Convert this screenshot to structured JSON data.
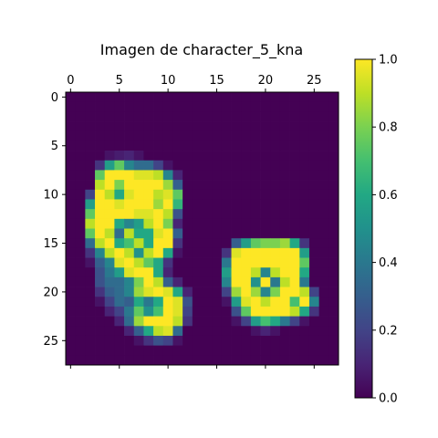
{
  "chart_data": {
    "type": "heatmap",
    "title": "Imagen de character_5_kna",
    "x_ticks": [
      0,
      5,
      10,
      15,
      20,
      25
    ],
    "y_ticks": [
      0,
      5,
      10,
      15,
      20,
      25
    ],
    "xlim": [
      -0.5,
      27.5
    ],
    "ylim": [
      27.5,
      -0.5
    ],
    "x_axis_position": "top",
    "colormap": "viridis",
    "colorbar": {
      "range": [
        0,
        1
      ],
      "ticks": [
        "0.0",
        "0.2",
        "0.4",
        "0.6",
        "0.8",
        "1.0"
      ]
    },
    "grid": false,
    "rows": 28,
    "cols": 28,
    "matrix": [
      [
        0,
        0,
        0,
        0,
        0,
        0,
        0,
        0,
        0,
        0,
        0,
        0,
        0,
        0,
        0,
        0,
        0,
        0,
        0,
        0,
        0,
        0,
        0,
        0,
        0,
        0,
        0,
        0
      ],
      [
        0,
        0,
        0,
        0,
        0,
        0,
        0,
        0,
        0,
        0,
        0,
        0,
        0,
        0,
        0,
        0,
        0,
        0,
        0,
        0,
        0,
        0,
        0,
        0,
        0,
        0,
        0,
        0
      ],
      [
        0,
        0,
        0,
        0,
        0,
        0,
        0,
        0,
        0,
        0,
        0,
        0,
        0,
        0,
        0,
        0,
        0,
        0,
        0,
        0,
        0,
        0,
        0,
        0,
        0,
        0,
        0,
        0
      ],
      [
        0,
        0,
        0,
        0,
        0,
        0,
        0,
        0,
        0,
        0,
        0,
        0,
        0,
        0,
        0,
        0,
        0,
        0,
        0,
        0,
        0,
        0,
        0,
        0,
        0,
        0,
        0,
        0
      ],
      [
        0,
        0,
        0,
        0,
        0,
        0,
        0,
        0,
        0,
        0,
        0,
        0,
        0,
        0,
        0,
        0,
        0,
        0,
        0,
        0,
        0,
        0,
        0,
        0,
        0,
        0,
        0,
        0
      ],
      [
        0,
        0,
        0,
        0,
        0,
        0,
        0,
        0,
        0,
        0,
        0,
        0,
        0,
        0,
        0,
        0,
        0,
        0,
        0,
        0,
        0,
        0,
        0,
        0,
        0,
        0,
        0,
        0
      ],
      [
        0,
        0,
        0,
        0,
        0.05,
        0.08,
        0.1,
        0.05,
        0,
        0,
        0,
        0,
        0,
        0,
        0,
        0,
        0,
        0,
        0,
        0,
        0,
        0,
        0,
        0,
        0,
        0,
        0,
        0
      ],
      [
        0,
        0,
        0,
        0.15,
        0.55,
        0.75,
        0.45,
        0.35,
        0.35,
        0.2,
        0.05,
        0,
        0,
        0,
        0,
        0,
        0,
        0,
        0,
        0,
        0,
        0,
        0,
        0,
        0,
        0,
        0,
        0
      ],
      [
        0,
        0,
        0,
        0.75,
        1,
        1,
        1,
        0.95,
        0.95,
        0.9,
        0.45,
        0.1,
        0,
        0,
        0,
        0,
        0,
        0,
        0,
        0,
        0,
        0,
        0,
        0,
        0,
        0,
        0,
        0
      ],
      [
        0,
        0,
        0,
        0.9,
        1,
        0.8,
        1,
        1,
        1,
        1,
        0.85,
        0.3,
        0,
        0,
        0,
        0,
        0,
        0,
        0,
        0,
        0,
        0,
        0,
        0,
        0,
        0,
        0,
        0
      ],
      [
        0,
        0,
        0.2,
        1,
        0.9,
        0.6,
        0.95,
        1,
        1,
        0.9,
        0.95,
        0.75,
        0,
        0,
        0,
        0,
        0,
        0,
        0,
        0,
        0,
        0,
        0,
        0,
        0,
        0,
        0,
        0
      ],
      [
        0,
        0,
        0.55,
        1,
        1,
        0.95,
        1,
        1,
        1,
        0.85,
        1,
        0.65,
        0,
        0,
        0,
        0,
        0,
        0,
        0,
        0,
        0,
        0,
        0,
        0,
        0,
        0,
        0,
        0
      ],
      [
        0,
        0,
        0.75,
        1,
        1,
        1,
        1,
        0.95,
        0.95,
        1,
        0.9,
        0.25,
        0,
        0,
        0,
        0,
        0,
        0,
        0,
        0,
        0,
        0,
        0,
        0,
        0,
        0,
        0,
        0
      ],
      [
        0,
        0,
        0.9,
        1,
        1,
        0.6,
        0.45,
        0.55,
        0.9,
        1,
        0.8,
        0.1,
        0,
        0,
        0,
        0,
        0,
        0,
        0,
        0,
        0,
        0,
        0,
        0,
        0,
        0,
        0,
        0
      ],
      [
        0,
        0,
        0.75,
        1,
        0.9,
        0.35,
        0.9,
        0.6,
        0.6,
        0.95,
        1,
        0.3,
        0,
        0,
        0,
        0,
        0,
        0,
        0,
        0,
        0,
        0,
        0,
        0,
        0,
        0,
        0,
        0
      ],
      [
        0,
        0,
        0.35,
        0.9,
        1,
        0.6,
        0.7,
        0.9,
        0.6,
        1,
        1,
        0.15,
        0,
        0,
        0,
        0,
        0,
        0.3,
        0.55,
        0.75,
        0.8,
        0.8,
        0.85,
        0.6,
        0.15,
        0,
        0,
        0
      ],
      [
        0,
        0,
        0.15,
        0.45,
        0.9,
        1,
        0.9,
        0.5,
        0.9,
        1,
        0.6,
        0.05,
        0,
        0,
        0,
        0,
        0.15,
        0.95,
        1,
        1,
        1,
        1,
        1,
        1,
        0.55,
        0,
        0,
        0
      ],
      [
        0,
        0,
        0.05,
        0.3,
        0.45,
        0.95,
        1,
        0.9,
        0.75,
        0.6,
        0.15,
        0,
        0,
        0,
        0,
        0,
        0.4,
        1,
        1,
        1,
        1,
        1,
        1,
        1,
        0.75,
        0,
        0,
        0
      ],
      [
        0,
        0,
        0,
        0.25,
        0.4,
        0.55,
        0.95,
        1,
        1,
        0.6,
        0.1,
        0,
        0,
        0,
        0,
        0,
        0.55,
        1,
        1,
        0.9,
        0.45,
        0.9,
        1,
        1,
        0.6,
        0,
        0,
        0
      ],
      [
        0,
        0,
        0,
        0.25,
        0.35,
        0.35,
        0.45,
        0.8,
        1,
        0.9,
        0.3,
        0.1,
        0,
        0,
        0,
        0,
        0.45,
        1,
        1,
        0.5,
        1,
        0.4,
        0.9,
        1,
        0.4,
        0,
        0,
        0
      ],
      [
        0,
        0,
        0,
        0.15,
        0.3,
        0.35,
        0.45,
        0.85,
        0.95,
        1,
        0.95,
        0.6,
        0.1,
        0,
        0,
        0,
        0.2,
        0.85,
        1,
        0.85,
        0.45,
        0.8,
        1,
        1,
        0.9,
        0.2,
        0,
        0
      ],
      [
        0,
        0,
        0,
        0.05,
        0.2,
        0.35,
        0.3,
        0.6,
        0.4,
        0.6,
        1,
        0.95,
        0.25,
        0,
        0,
        0,
        0.05,
        0.55,
        0.95,
        1,
        0.9,
        1,
        1,
        0.7,
        1,
        0.45,
        0,
        0
      ],
      [
        0,
        0,
        0,
        0,
        0.1,
        0.2,
        0.4,
        0.75,
        0.5,
        0.7,
        1,
        0.95,
        0.2,
        0,
        0,
        0,
        0,
        0.25,
        0.75,
        1,
        1,
        1,
        1,
        0.9,
        0.6,
        0.15,
        0,
        0
      ],
      [
        0,
        0,
        0,
        0,
        0,
        0.1,
        0.35,
        0.85,
        1,
        1,
        1,
        0.9,
        0.15,
        0,
        0,
        0,
        0,
        0.05,
        0.2,
        0.55,
        0.7,
        0.6,
        0.4,
        0.2,
        0.05,
        0,
        0,
        0
      ],
      [
        0,
        0,
        0,
        0,
        0,
        0,
        0.1,
        0.3,
        0.6,
        0.9,
        0.95,
        0.35,
        0,
        0,
        0,
        0,
        0,
        0,
        0,
        0.05,
        0.1,
        0.05,
        0,
        0,
        0,
        0,
        0,
        0
      ],
      [
        0,
        0,
        0,
        0,
        0,
        0,
        0,
        0.05,
        0.15,
        0.25,
        0.2,
        0.05,
        0,
        0,
        0,
        0,
        0,
        0,
        0,
        0,
        0,
        0,
        0,
        0,
        0,
        0,
        0,
        0
      ],
      [
        0,
        0,
        0,
        0,
        0,
        0,
        0,
        0,
        0,
        0,
        0,
        0,
        0,
        0,
        0,
        0,
        0,
        0,
        0,
        0,
        0,
        0,
        0,
        0,
        0,
        0,
        0,
        0
      ],
      [
        0,
        0,
        0,
        0,
        0,
        0,
        0,
        0,
        0,
        0,
        0,
        0,
        0,
        0,
        0,
        0,
        0,
        0,
        0,
        0,
        0,
        0,
        0,
        0,
        0,
        0,
        0,
        0
      ]
    ]
  }
}
